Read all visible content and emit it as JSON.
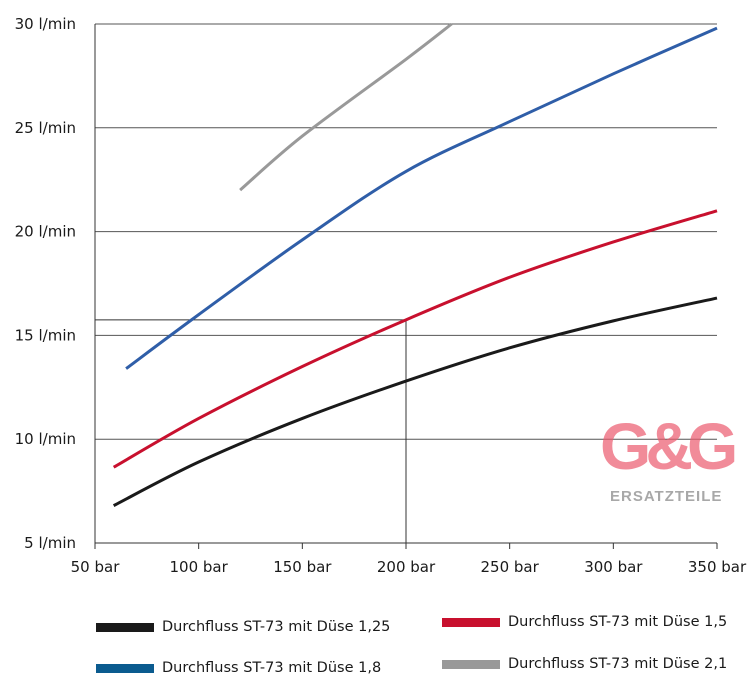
{
  "chart_data": {
    "type": "line",
    "title": "",
    "xlabel": "",
    "ylabel": "",
    "xlim": [
      50,
      350
    ],
    "ylim": [
      5,
      30
    ],
    "grid": "horizontal",
    "legend_position": "bottom",
    "x_ticks": [
      50,
      100,
      150,
      200,
      250,
      300,
      350
    ],
    "x_tick_labels": [
      "50 bar",
      "100 bar",
      "150 bar",
      "200 bar",
      "250 bar",
      "300 bar",
      "350 bar"
    ],
    "y_ticks": [
      5,
      10,
      15,
      20,
      25,
      30
    ],
    "y_tick_labels": [
      "5 l/min",
      "10 l/min",
      "15 l/min",
      "20 l/min",
      "25 l/min",
      "30 l/min"
    ],
    "series": [
      {
        "name": "Durchfluss ST-73 mit Düse 1,25",
        "color": "#1a1a1a",
        "x": [
          59,
          100,
          150,
          200,
          250,
          300,
          350
        ],
        "y": [
          6.8,
          8.9,
          11.0,
          12.8,
          14.4,
          15.7,
          16.8
        ]
      },
      {
        "name": "Durchfluss ST-73 mit Düse 1,5",
        "color": "#c8102e",
        "x": [
          59,
          100,
          150,
          200,
          250,
          300,
          350
        ],
        "y": [
          8.65,
          11.0,
          13.5,
          15.75,
          17.8,
          19.5,
          21.0
        ]
      },
      {
        "name": "Durchfluss ST-73 mit Düse 1,8",
        "color": "#2f5ea8",
        "x": [
          65,
          100,
          150,
          200,
          250,
          300,
          350
        ],
        "y": [
          13.4,
          16.0,
          19.6,
          22.9,
          25.3,
          27.6,
          29.8
        ]
      },
      {
        "name": "Durchfluss ST-73 mit Düse 2,1",
        "color": "#999999",
        "x": [
          120,
          150,
          200,
          222
        ],
        "y": [
          22.0,
          24.6,
          28.3,
          30.0
        ]
      }
    ],
    "annotations": [
      {
        "type": "reference-lines",
        "x": 200,
        "y": 15.75
      }
    ]
  },
  "legend": {
    "items": [
      {
        "label": "Durchfluss ST-73 mit Düse 1,25",
        "color": "#1a1a1a"
      },
      {
        "label": "Durchfluss ST-73 mit Düse 1,5",
        "color": "#c8102e"
      },
      {
        "label": "Durchfluss ST-73 mit Düse 1,8",
        "color": "#0b5b8f"
      },
      {
        "label": "Durchfluss ST-73 mit Düse 2,1",
        "color": "#999999"
      }
    ]
  },
  "watermark": {
    "main": "G&G",
    "sub": "ERSATZTEILE"
  }
}
